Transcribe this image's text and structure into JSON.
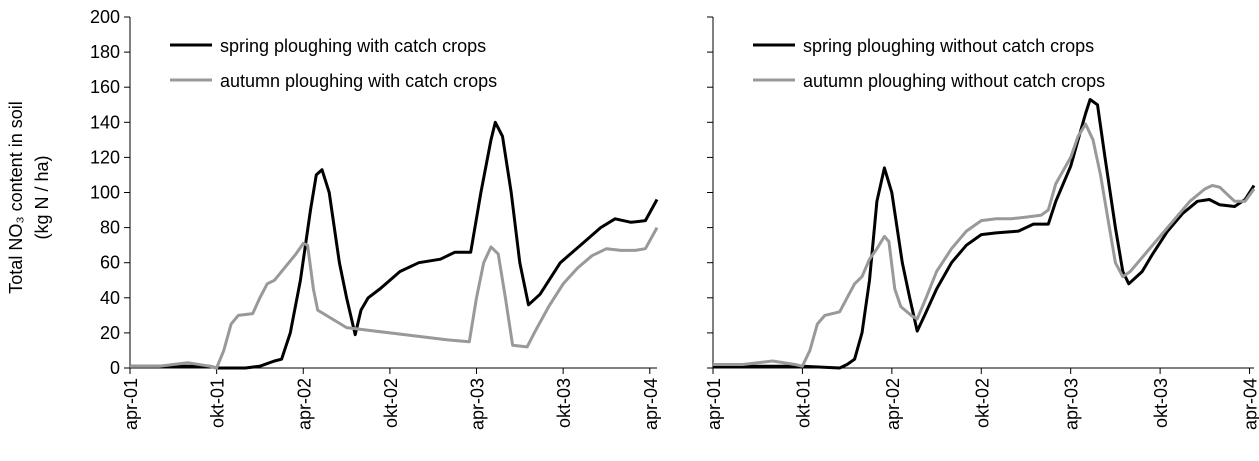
{
  "chart_data": [
    {
      "type": "line",
      "ylabel": [
        "Total NO₃ content in soil",
        "(kg N / ha)"
      ],
      "xlim": [
        0,
        36.5
      ],
      "ylim": [
        0,
        200
      ],
      "yticks": [
        0,
        20,
        40,
        60,
        80,
        100,
        120,
        140,
        160,
        180,
        200
      ],
      "show_ytick_labels": true,
      "xticks": [
        {
          "value": 0,
          "label": "apr-01"
        },
        {
          "value": 6,
          "label": "okt-01"
        },
        {
          "value": 12,
          "label": "apr-02"
        },
        {
          "value": 18,
          "label": "okt-02"
        },
        {
          "value": 24,
          "label": "apr-03"
        },
        {
          "value": 30,
          "label": "okt-03"
        },
        {
          "value": 36,
          "label": "apr-04"
        }
      ],
      "legend": "upper left",
      "series": [
        {
          "name": "spring ploughing with catch crops",
          "color": "#000000",
          "x": [
            0,
            3,
            5.5,
            6,
            8,
            9,
            10,
            10.5,
            11.1,
            11.8,
            12.5,
            12.9,
            13.3,
            13.8,
            14.5,
            15,
            15.6,
            16,
            16.5,
            17.3,
            18.7,
            20,
            21.5,
            22.5,
            23.6,
            24.3,
            25,
            25.3,
            25.8,
            26.4,
            27,
            27.6,
            28.4,
            29.8,
            31.2,
            32.6,
            33.6,
            34.7,
            35.7,
            36.5
          ],
          "values": [
            1,
            1,
            1,
            0,
            0,
            1,
            4,
            5,
            20,
            50,
            90,
            110,
            113,
            100,
            60,
            40,
            19,
            33,
            40,
            45,
            55,
            60,
            62,
            66,
            66,
            100,
            130,
            140,
            132,
            100,
            60,
            36,
            42,
            60,
            70,
            80,
            85,
            83,
            84,
            96
          ]
        },
        {
          "name": "autumn ploughing with catch crops",
          "color": "#999999",
          "x": [
            0,
            2,
            4,
            5.5,
            6,
            6.5,
            7,
            7.5,
            8.5,
            9,
            9.5,
            10,
            11,
            11.5,
            12,
            12.3,
            12.7,
            13,
            14,
            15,
            16,
            18,
            20,
            22,
            23.5,
            24,
            24.5,
            25,
            25.5,
            26,
            26.5,
            27.5,
            28,
            29,
            30,
            31,
            32,
            33,
            34,
            35,
            35.7,
            36.5
          ],
          "values": [
            1,
            1,
            3,
            1,
            0,
            10,
            25,
            30,
            31,
            40,
            48,
            50,
            60,
            65,
            71,
            70,
            45,
            33,
            28,
            23,
            22,
            20,
            18,
            16,
            15,
            40,
            60,
            69,
            65,
            40,
            13,
            12,
            20,
            35,
            48,
            57,
            64,
            68,
            67,
            67,
            68,
            80
          ]
        }
      ]
    },
    {
      "type": "line",
      "xlim": [
        0,
        36.3
      ],
      "ylim": [
        0,
        200
      ],
      "yticks": [
        0,
        20,
        40,
        60,
        80,
        100,
        120,
        140,
        160,
        180,
        200
      ],
      "show_ytick_labels": false,
      "xticks": [
        {
          "value": 0,
          "label": "apr-01"
        },
        {
          "value": 6,
          "label": "okt-01"
        },
        {
          "value": 12,
          "label": "apr-02"
        },
        {
          "value": 18,
          "label": "okt-02"
        },
        {
          "value": 24,
          "label": "apr-03"
        },
        {
          "value": 30,
          "label": "okt-03"
        },
        {
          "value": 36,
          "label": "apr-04"
        }
      ],
      "legend": "upper left",
      "series": [
        {
          "name": "spring ploughing without catch crops",
          "color": "#000000",
          "x": [
            0,
            3,
            6,
            8.5,
            9,
            9.5,
            10,
            10.5,
            11,
            11.5,
            12,
            12.7,
            13.2,
            13.7,
            14.2,
            15,
            16,
            17,
            18,
            19,
            20.5,
            21.5,
            22.5,
            23,
            24,
            24.5,
            25,
            25.3,
            25.8,
            26.3,
            27,
            27.5,
            27.9,
            28.8,
            29.5,
            30.5,
            31.5,
            32.5,
            33.3,
            34,
            35,
            35.7,
            36.3
          ],
          "values": [
            1,
            1,
            1,
            0,
            2,
            5,
            20,
            50,
            95,
            114,
            100,
            60,
            40,
            21,
            30,
            45,
            60,
            70,
            76,
            77,
            78,
            82,
            82,
            95,
            115,
            130,
            145,
            153,
            150,
            120,
            80,
            55,
            48,
            55,
            65,
            78,
            88,
            95,
            96,
            93,
            92,
            96,
            104
          ]
        },
        {
          "name": "autumn ploughing without catch crops",
          "color": "#999999",
          "x": [
            0,
            2,
            4,
            5.5,
            6,
            6.5,
            7,
            7.5,
            8.5,
            9,
            9.5,
            10,
            10.5,
            11,
            11.5,
            11.8,
            12.2,
            12.6,
            13.3,
            13.7,
            14.3,
            15,
            16,
            17,
            18,
            19,
            20,
            21,
            22,
            22.5,
            23,
            24,
            24.5,
            25,
            25.5,
            26,
            26.5,
            27,
            27.5,
            28,
            29,
            30,
            31,
            32,
            33,
            33.5,
            34,
            35,
            35.7,
            36.3
          ],
          "values": [
            2,
            2,
            4,
            2,
            1,
            10,
            25,
            30,
            32,
            40,
            48,
            52,
            62,
            68,
            75,
            72,
            45,
            35,
            30,
            28,
            40,
            55,
            68,
            78,
            84,
            85,
            85,
            86,
            87,
            90,
            105,
            120,
            132,
            139,
            130,
            110,
            85,
            60,
            52,
            55,
            65,
            75,
            85,
            95,
            102,
            104,
            103,
            95,
            95,
            102
          ]
        }
      ]
    }
  ]
}
